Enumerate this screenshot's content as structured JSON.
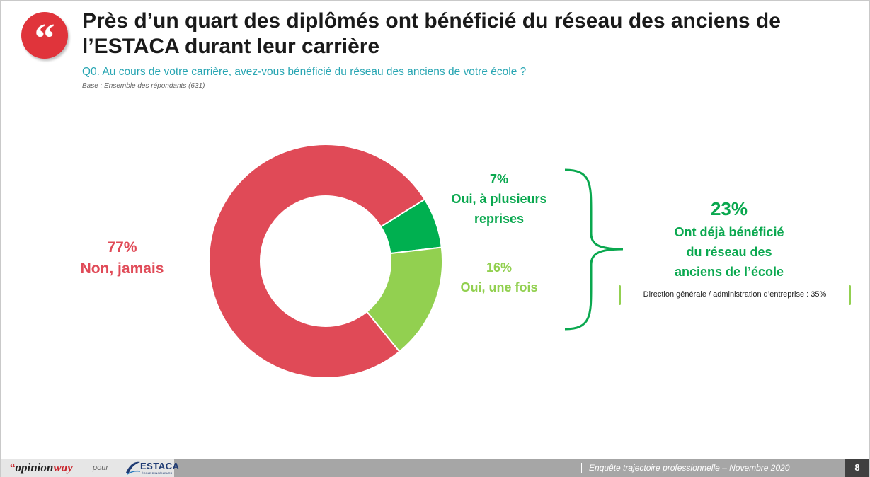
{
  "header": {
    "quote_mark": "“",
    "title": "Près d’un quart des diplômés ont bénéficié du réseau des anciens de l’ESTACA durant leur carrière",
    "question": "Q0. Au cours de votre carrière, avez-vous bénéficié du réseau des anciens de votre école ?",
    "base": "Base : Ensemble des répondants (631)"
  },
  "chart_data": {
    "type": "pie",
    "variant": "donut",
    "unit": "%",
    "slices": [
      {
        "label": "Oui, à plusieurs reprises",
        "value": 7,
        "display": "7%",
        "color": "#00b050"
      },
      {
        "label": "Oui, une fois",
        "value": 16,
        "display": "16%",
        "color": "#92d050"
      },
      {
        "label": "Non, jamais",
        "value": 77,
        "display": "77%",
        "color": "#e04a57"
      }
    ],
    "labels": {
      "non": {
        "pct": "77%",
        "text": "Non, jamais"
      },
      "plusieurs": {
        "pct": "7%",
        "line1": "Oui, à plusieurs",
        "line2": "reprises"
      },
      "une": {
        "pct": "16%",
        "text": "Oui, une fois"
      }
    },
    "summary": {
      "pct": "23%",
      "line1": "Ont déjà bénéficié",
      "line2": "du réseau des",
      "line3": "anciens de l’école"
    },
    "note": "Direction générale / administration d’entreprise : 35%"
  },
  "footer": {
    "logo_quote": "“",
    "logo_opinion": "opinion",
    "logo_way": "way",
    "pour": "pour",
    "estaca": "ESTACA",
    "estaca_sub": "ÉCOLE D'INGÉNIEURS",
    "survey": "Enquête trajectoire professionnelle – Novembre 2020",
    "page": "8"
  },
  "colors": {
    "accent_red": "#e0343b",
    "teal": "#29a6b3",
    "dark_green": "#0aa84f",
    "light_green": "#92d050",
    "footer_gray": "#a6a6a6"
  }
}
